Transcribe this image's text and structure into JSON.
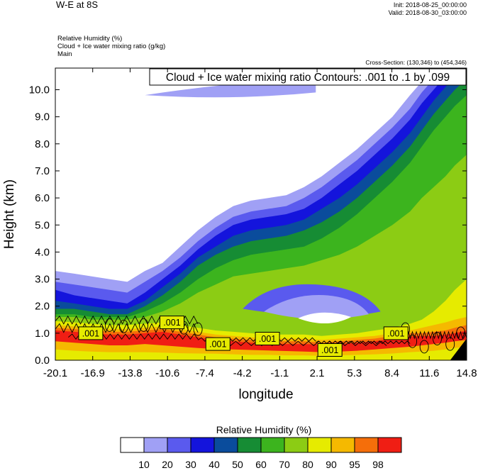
{
  "header": {
    "title": "W-E at 8S",
    "init": "Init: 2018-08-25_00:00:00",
    "valid": "Valid: 2018-08-30_03:00:00",
    "variables": [
      "Relative Humidity   (%)",
      "Cloud + Ice water mixing ratio   (g/kg)",
      "Main"
    ],
    "cross_section": "Cross-Section: (130,346) to (454,346)"
  },
  "colors": {
    "levels": [
      "#ffffff",
      "#a0a0f5",
      "#5a5aee",
      "#1414dc",
      "#0a4c9c",
      "#168c34",
      "#3cb41e",
      "#8ccc14",
      "#e6eb00",
      "#f5b900",
      "#f56e0a",
      "#f01e14"
    ],
    "terrain": "#000000"
  },
  "chart_data": {
    "type": "heatmap",
    "title": "Cloud + Ice water mixing ratio Contours: .001 to .1 by .099",
    "xlabel": "longitude",
    "ylabel": "Height (km)",
    "x_ticks": [
      "-20.1",
      "-16.9",
      "-13.8",
      "-10.6",
      "-7.4",
      "-4.2",
      "-1.1",
      "2.1",
      "5.3",
      "8.4",
      "11.6",
      "14.8"
    ],
    "y_ticks": [
      "0.0",
      "1.0",
      "2.0",
      "3.0",
      "4.0",
      "5.0",
      "6.0",
      "7.0",
      "8.0",
      "9.0",
      "10.0"
    ],
    "xlim": [
      -20.1,
      14.8
    ],
    "ylim": [
      0,
      10.8
    ],
    "colorbar": {
      "title": "Relative Humidity  (%)",
      "labels": [
        "10",
        "20",
        "30",
        "40",
        "50",
        "60",
        "70",
        "80",
        "90",
        "95",
        "98"
      ]
    },
    "contour_labels": [
      {
        "text": ".001",
        "x": -17.1,
        "y": 1.0
      },
      {
        "text": ".001",
        "x": -10.2,
        "y": 1.4
      },
      {
        "text": ".001",
        "x": -6.3,
        "y": 0.6
      },
      {
        "text": ".001",
        "x": -2.1,
        "y": 0.8
      },
      {
        "text": ".001",
        "x": 3.2,
        "y": 0.38
      },
      {
        "text": ".001",
        "x": 8.8,
        "y": 1.0
      }
    ]
  }
}
